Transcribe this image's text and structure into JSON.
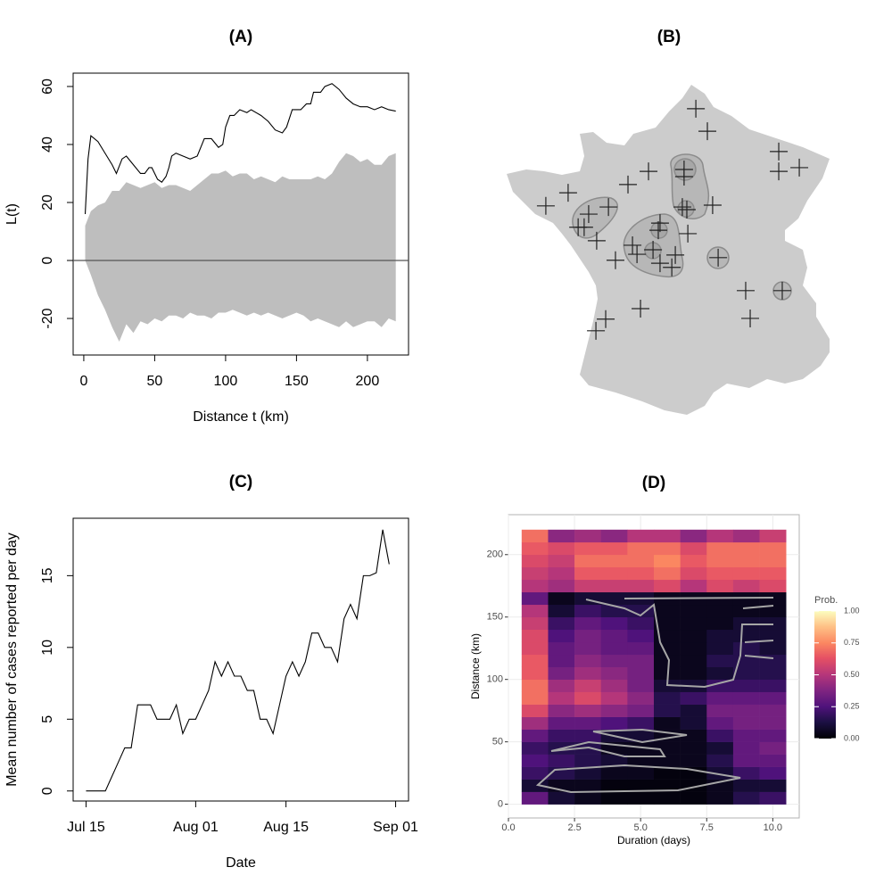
{
  "chart_data": [
    {
      "type": "line",
      "title": "(A)",
      "x_label": "Distance t (km)",
      "y_label": "L(t)",
      "xlim": [
        -7.5,
        229
      ],
      "ylim": [
        -32.6,
        64.6
      ],
      "xticks": [
        0,
        50,
        100,
        150,
        200
      ],
      "yticks": [
        -20,
        0,
        20,
        40,
        60
      ],
      "reference_line": 0,
      "envelope": {
        "color": "#bebebe",
        "x": [
          1,
          5,
          10,
          15,
          20,
          25,
          30,
          35,
          40,
          45,
          50,
          55,
          60,
          65,
          70,
          75,
          80,
          85,
          90,
          95,
          100,
          105,
          110,
          115,
          120,
          125,
          130,
          135,
          140,
          145,
          150,
          155,
          160,
          165,
          170,
          175,
          180,
          185,
          190,
          195,
          200,
          205,
          210,
          215,
          220
        ],
        "upper": [
          12,
          17,
          19,
          20,
          24,
          24,
          27,
          26,
          25,
          26,
          27,
          25,
          26,
          26,
          25,
          24,
          26,
          28,
          30,
          30,
          31,
          29,
          30,
          30,
          28,
          29,
          28,
          27,
          29,
          28,
          28,
          28,
          28,
          29,
          28,
          30,
          34,
          37,
          36,
          34,
          35,
          33,
          33,
          36,
          37
        ],
        "lower": [
          0,
          -5,
          -12,
          -17,
          -23,
          -28,
          -22,
          -25,
          -21,
          -22,
          -20,
          -21,
          -19,
          -19,
          -20,
          -18,
          -19,
          -19,
          -20,
          -18,
          -18,
          -17,
          -18,
          -19,
          -18,
          -19,
          -18,
          -19,
          -20,
          -19,
          -18,
          -19,
          -21,
          -20,
          -21,
          -22,
          -23,
          -21,
          -23,
          -22,
          -21,
          -21,
          -23,
          -20,
          -21
        ]
      },
      "series": [
        {
          "color": "#000000",
          "x": [
            1,
            3,
            5,
            10,
            15,
            20,
            23,
            27,
            30,
            35,
            40,
            43,
            46,
            48,
            52,
            55,
            58,
            60,
            62,
            65,
            70,
            75,
            80,
            85,
            90,
            95,
            98,
            100,
            103,
            106,
            110,
            115,
            118,
            125,
            130,
            135,
            140,
            143,
            147,
            153,
            157,
            160,
            162,
            167,
            170,
            175,
            180,
            185,
            190,
            195,
            200,
            205,
            210,
            215,
            220
          ],
          "values": [
            16,
            35,
            43,
            41,
            37,
            33,
            30,
            35,
            36,
            33,
            30,
            30,
            32,
            32,
            28,
            27,
            29,
            32,
            36,
            37,
            36,
            35,
            36,
            42,
            42,
            39,
            40,
            46,
            50,
            50,
            52,
            51,
            52,
            50,
            48,
            45,
            44,
            46,
            52,
            52,
            54,
            54,
            58,
            58,
            60,
            61,
            59,
            56,
            54,
            53,
            53,
            52,
            53,
            52,
            51.5
          ]
        }
      ]
    },
    {
      "type": "map",
      "title": "(B)",
      "color": "#cccccc",
      "point_color": "#222222",
      "points": {
        "lon": [
          2.79,
          3.25,
          6.1,
          6.1,
          6.92,
          0.9,
          2.32,
          2.32,
          0.08,
          -2.31,
          -3.2,
          -0.7,
          -1.49,
          -1.91,
          -1.67,
          -1.17,
          2.25,
          2.43,
          3.46,
          1.36,
          1.29,
          2.47,
          0.26,
          0.44,
          1.08,
          1.97,
          1.36,
          1.83,
          -0.42,
          3.68,
          4.78,
          6.24,
          4.96,
          0.58,
          -0.81,
          -1.2
        ],
        "lat": [
          50.46,
          49.86,
          49.32,
          48.79,
          48.89,
          48.79,
          48.84,
          48.65,
          48.44,
          48.22,
          47.87,
          47.84,
          47.65,
          47.3,
          47.3,
          46.94,
          47.84,
          47.77,
          47.89,
          47.41,
          47.22,
          47.13,
          46.82,
          46.58,
          46.7,
          46.56,
          46.34,
          46.23,
          46.42,
          46.49,
          45.61,
          45.61,
          44.87,
          45.13,
          44.85,
          44.54
        ]
      }
    },
    {
      "type": "line",
      "title": "(C)",
      "x_label": "Date",
      "y_label": "Mean number of cases reported per day",
      "xlim": [
        "Jul 13",
        "Sep 03"
      ],
      "ylim": [
        -0.7,
        19
      ],
      "xticks": [
        "Jul 15",
        "Aug 01",
        "Aug 15",
        "Sep 01"
      ],
      "yticks": [
        0,
        5,
        10,
        15
      ],
      "series": [
        {
          "color": "#000000",
          "x": [
            "Jul 15",
            "Jul 16",
            "Jul 17",
            "Jul 18",
            "Jul 19",
            "Jul 20",
            "Jul 21",
            "Jul 22",
            "Jul 23",
            "Jul 24",
            "Jul 25",
            "Jul 26",
            "Jul 27",
            "Jul 28",
            "Jul 29",
            "Jul 30",
            "Jul 31",
            "Aug 01",
            "Aug 02",
            "Aug 03",
            "Aug 04",
            "Aug 05",
            "Aug 06",
            "Aug 07",
            "Aug 08",
            "Aug 09",
            "Aug 10",
            "Aug 11",
            "Aug 12",
            "Aug 13",
            "Aug 14",
            "Aug 15",
            "Aug 16",
            "Aug 17",
            "Aug 18",
            "Aug 19",
            "Aug 20",
            "Aug 21",
            "Aug 22",
            "Aug 23",
            "Aug 24",
            "Aug 25",
            "Aug 26",
            "Aug 27",
            "Aug 28",
            "Aug 29",
            "Aug 30",
            "Aug 31"
          ],
          "values": [
            0,
            0,
            0,
            0,
            1,
            2,
            3,
            3,
            6,
            6,
            6,
            5,
            5,
            5,
            6,
            4,
            5,
            5,
            6,
            7,
            9,
            8,
            9,
            8,
            8,
            7,
            7,
            5,
            5,
            4,
            6,
            8,
            9,
            8,
            9,
            11,
            11,
            10,
            10,
            9,
            12,
            13,
            12,
            15,
            15,
            15.2,
            18.2,
            15.8
          ]
        }
      ]
    },
    {
      "type": "heatmap",
      "title": "(D)",
      "x_label": "Duration (days)",
      "y_label": "Distance (km)",
      "xlim": [
        0,
        11
      ],
      "ylim": [
        -11,
        232
      ],
      "xticks": [
        {
          "value": 0,
          "label": "0.0"
        },
        2.5,
        {
          "value": 5,
          "label": "5.0"
        },
        7.5,
        {
          "value": 10,
          "label": "10.0"
        }
      ],
      "yticks": [
        0,
        50,
        100,
        150,
        200
      ],
      "grid": true,
      "x": [
        1,
        2,
        3,
        4,
        5,
        6,
        7,
        8,
        9,
        10
      ],
      "y_bins": [
        0,
        10,
        20,
        30,
        40,
        50,
        60,
        70,
        80,
        90,
        100,
        110,
        120,
        130,
        140,
        150,
        160,
        170,
        180,
        190,
        200,
        210,
        220
      ],
      "z": [
        [
          0.3,
          0.1,
          0.05,
          0.02,
          0.02,
          0.02,
          0.02,
          0.05,
          0.15,
          0.2
        ],
        [
          0.1,
          0.05,
          0.05,
          0.02,
          0.02,
          0.02,
          0.02,
          0.05,
          0.1,
          0.1
        ],
        [
          0.2,
          0.15,
          0.1,
          0.05,
          0.05,
          0.02,
          0.02,
          0.1,
          0.2,
          0.25
        ],
        [
          0.25,
          0.2,
          0.15,
          0.1,
          0.05,
          0.05,
          0.05,
          0.15,
          0.3,
          0.3
        ],
        [
          0.2,
          0.15,
          0.15,
          0.05,
          0.05,
          0.05,
          0.05,
          0.1,
          0.3,
          0.35
        ],
        [
          0.3,
          0.2,
          0.2,
          0.1,
          0.1,
          0.05,
          0.05,
          0.2,
          0.3,
          0.3
        ],
        [
          0.45,
          0.3,
          0.3,
          0.25,
          0.2,
          0.05,
          0.1,
          0.3,
          0.35,
          0.35
        ],
        [
          0.6,
          0.4,
          0.45,
          0.4,
          0.35,
          0.15,
          0.1,
          0.35,
          0.35,
          0.35
        ],
        [
          0.7,
          0.5,
          0.6,
          0.5,
          0.4,
          0.15,
          0.2,
          0.3,
          0.3,
          0.3
        ],
        [
          0.7,
          0.45,
          0.55,
          0.45,
          0.35,
          0.1,
          0.1,
          0.2,
          0.2,
          0.2
        ],
        [
          0.65,
          0.35,
          0.45,
          0.4,
          0.35,
          0.05,
          0.05,
          0.1,
          0.15,
          0.15
        ],
        [
          0.65,
          0.3,
          0.4,
          0.35,
          0.35,
          0.05,
          0.05,
          0.15,
          0.15,
          0.15
        ],
        [
          0.6,
          0.3,
          0.35,
          0.3,
          0.3,
          0.05,
          0.05,
          0.1,
          0.15,
          0.1
        ],
        [
          0.6,
          0.25,
          0.35,
          0.3,
          0.25,
          0.05,
          0.05,
          0.1,
          0.1,
          0.1
        ],
        [
          0.55,
          0.2,
          0.3,
          0.25,
          0.2,
          0.05,
          0.05,
          0.05,
          0.1,
          0.1
        ],
        [
          0.5,
          0.1,
          0.2,
          0.15,
          0.15,
          0.05,
          0.05,
          0.05,
          0.05,
          0.05
        ],
        [
          0.3,
          0.05,
          0.1,
          0.1,
          0.1,
          0.05,
          0.05,
          0.05,
          0.05,
          0.05
        ],
        [
          0.5,
          0.45,
          0.55,
          0.55,
          0.55,
          0.6,
          0.5,
          0.6,
          0.55,
          0.6
        ],
        [
          0.55,
          0.5,
          0.65,
          0.65,
          0.65,
          0.7,
          0.6,
          0.65,
          0.65,
          0.65
        ],
        [
          0.6,
          0.55,
          0.7,
          0.7,
          0.7,
          0.75,
          0.65,
          0.7,
          0.7,
          0.7
        ],
        [
          0.65,
          0.6,
          0.65,
          0.65,
          0.7,
          0.7,
          0.6,
          0.7,
          0.7,
          0.7
        ],
        [
          0.7,
          0.4,
          0.45,
          0.4,
          0.5,
          0.5,
          0.4,
          0.5,
          0.45,
          0.55
        ]
      ],
      "colorbar_title": "Prob.",
      "colorbar_lim": [
        0,
        1
      ],
      "colorbar_ticks": [
        {
          "value": 0,
          "label": "0.00"
        },
        0.25,
        {
          "value": 0.5,
          "label": "0.50"
        },
        0.75,
        {
          "value": 1,
          "label": "1.00"
        }
      ]
    }
  ]
}
